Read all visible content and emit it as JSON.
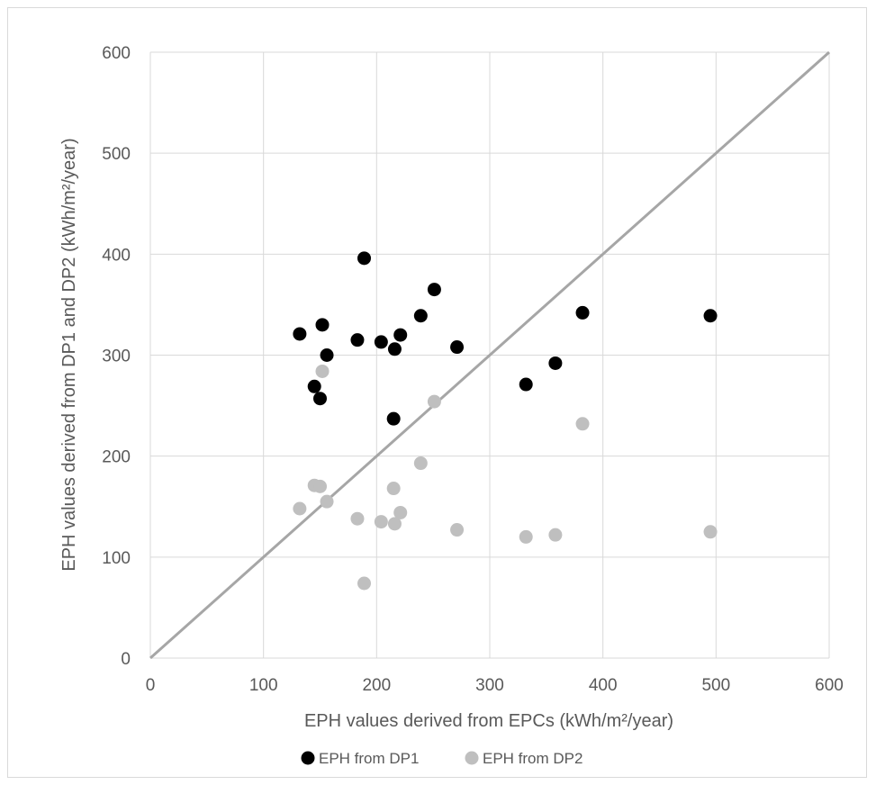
{
  "chart_data": {
    "type": "scatter",
    "title": "",
    "xlabel": "EPH values derived from EPCs (kWh/m²/year)",
    "ylabel": "EPH values derived from DP1 and DP2  (kWh/m²/year)",
    "xlim": [
      0,
      600
    ],
    "ylim": [
      0,
      600
    ],
    "x_ticks": [
      "0",
      "100",
      "200",
      "300",
      "400",
      "500",
      "600"
    ],
    "y_ticks": [
      "0",
      "100",
      "200",
      "300",
      "400",
      "500",
      "600"
    ],
    "grid": true,
    "legend_position": "bottom",
    "reference_line": {
      "from": [
        0,
        0
      ],
      "to": [
        600,
        600
      ],
      "color": "#a6a6a6"
    },
    "series": [
      {
        "name": "EPH from DP1",
        "color": "#000000",
        "points": [
          [
            132,
            321
          ],
          [
            145,
            269
          ],
          [
            150,
            257
          ],
          [
            152,
            330
          ],
          [
            156,
            300
          ],
          [
            183,
            315
          ],
          [
            189,
            396
          ],
          [
            204,
            313
          ],
          [
            215,
            237
          ],
          [
            216,
            306
          ],
          [
            221,
            320
          ],
          [
            239,
            339
          ],
          [
            251,
            365
          ],
          [
            271,
            308
          ],
          [
            332,
            271
          ],
          [
            358,
            292
          ],
          [
            382,
            342
          ],
          [
            495,
            339
          ]
        ]
      },
      {
        "name": "EPH from DP2",
        "color": "#bfbfbf",
        "points": [
          [
            132,
            148
          ],
          [
            145,
            171
          ],
          [
            150,
            170
          ],
          [
            152,
            284
          ],
          [
            156,
            155
          ],
          [
            183,
            138
          ],
          [
            189,
            74
          ],
          [
            204,
            135
          ],
          [
            215,
            168
          ],
          [
            216,
            133
          ],
          [
            221,
            144
          ],
          [
            239,
            193
          ],
          [
            251,
            254
          ],
          [
            271,
            127
          ],
          [
            332,
            120
          ],
          [
            358,
            122
          ],
          [
            382,
            232
          ],
          [
            495,
            125
          ]
        ]
      }
    ]
  }
}
